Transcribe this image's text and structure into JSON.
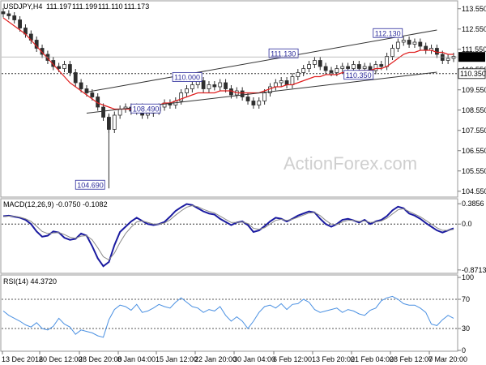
{
  "chart_data": [
    {
      "type": "candlestick",
      "symbol": "USDJPY,H4",
      "ohlc_header": [
        "111.197",
        "111.199",
        "111.110",
        "111.173"
      ],
      "ylim": [
        104.3,
        113.9
      ],
      "y_ticks": [
        "113.550",
        "112.550",
        "111.550",
        "110.550",
        "109.550",
        "108.550",
        "107.550",
        "106.550",
        "105.550",
        "104.550"
      ],
      "last_price": "111.173",
      "level_line": "110.350",
      "moving_average": "red",
      "annotations": [
        "104.690",
        "108.490",
        "110.000",
        "111.130",
        "110.350",
        "112.130"
      ],
      "watermark": "ActionForex.com",
      "x_ticks": [
        "13 Dec 2018",
        "20 Dec 12:00",
        "28 Dec 20:00",
        "8 Jan 04:00",
        "15 Jan 12:00",
        "22 Jan 20:00",
        "30 Jan 04:00",
        "6 Feb 12:00",
        "13 Feb 20:00",
        "21 Feb 04:00",
        "28 Feb 12:00",
        "7 Mar 20:00"
      ],
      "closes": [
        113.3,
        113.2,
        113.0,
        112.6,
        112.3,
        112.0,
        111.6,
        111.3,
        111.0,
        110.7,
        110.6,
        110.8,
        110.4,
        109.9,
        109.6,
        109.4,
        109.2,
        108.7,
        108.2,
        107.6,
        108.3,
        108.6,
        108.7,
        108.5,
        108.7,
        108.3,
        108.4,
        108.5,
        108.7,
        108.9,
        108.8,
        109.0,
        109.4,
        109.6,
        109.8,
        110.0,
        109.6,
        109.8,
        109.7,
        109.9,
        109.6,
        109.3,
        109.5,
        109.2,
        109.0,
        108.8,
        109.0,
        109.4,
        109.7,
        109.9,
        110.0,
        109.8,
        110.2,
        110.4,
        110.6,
        110.8,
        111.0,
        110.7,
        110.5,
        110.4,
        110.6,
        110.7,
        110.6,
        110.8,
        110.6,
        110.7,
        110.5,
        110.8,
        110.7,
        111.2,
        111.6,
        111.9,
        112.0,
        111.8,
        111.9,
        111.7,
        111.5,
        111.6,
        111.3,
        111.0,
        111.1,
        111.2
      ],
      "ma_closes": [
        113.1,
        112.9,
        112.7,
        112.5,
        112.3,
        112.0,
        111.7,
        111.4,
        111.1,
        110.8,
        110.5,
        110.2,
        109.9,
        109.7,
        109.5,
        109.3,
        109.1,
        108.9,
        108.8,
        108.7,
        108.6,
        108.6,
        108.6,
        108.6,
        108.6,
        108.6,
        108.7,
        108.7,
        108.8,
        108.9,
        108.9,
        109.0,
        109.1,
        109.2,
        109.3,
        109.4,
        109.4,
        109.4,
        109.4,
        109.5,
        109.5,
        109.5,
        109.4,
        109.4,
        109.4,
        109.4,
        109.4,
        109.5,
        109.6,
        109.7,
        109.7,
        109.8,
        109.8,
        109.9,
        110.0,
        110.1,
        110.2,
        110.2,
        110.3,
        110.3,
        110.3,
        110.4,
        110.4,
        110.4,
        110.5,
        110.5,
        110.5,
        110.6,
        110.6,
        110.7,
        110.9,
        111.1,
        111.3,
        111.4,
        111.4,
        111.5,
        111.5,
        111.5,
        111.4,
        111.4,
        111.3,
        111.3
      ],
      "channel": [
        [
          15,
          108.4
        ],
        [
          78,
          112.5
        ],
        [
          15,
          109.6
        ],
        [
          78,
          110.5
        ]
      ]
    },
    {
      "type": "line",
      "title": "MACD(12,26,9) -0.0750 -0.1082",
      "ylim": [
        -0.92,
        0.45
      ],
      "y_ticks": [
        "0.3856",
        "0.0",
        "-0.8713"
      ],
      "series": [
        {
          "color": "#1a1aa0",
          "values": [
            0.15,
            0.16,
            0.14,
            0.12,
            0.08,
            0.0,
            -0.14,
            -0.24,
            -0.22,
            -0.14,
            -0.16,
            -0.26,
            -0.3,
            -0.28,
            -0.18,
            -0.22,
            -0.42,
            -0.65,
            -0.8,
            -0.72,
            -0.4,
            -0.15,
            -0.05,
            0.05,
            0.12,
            0.06,
            0.0,
            -0.02,
            0.0,
            0.04,
            0.14,
            0.25,
            0.32,
            0.38,
            0.36,
            0.3,
            0.24,
            0.2,
            0.18,
            0.1,
            0.04,
            -0.02,
            0.03,
            0.05,
            -0.02,
            -0.15,
            -0.12,
            -0.04,
            0.05,
            0.12,
            0.1,
            0.05,
            0.1,
            0.16,
            0.2,
            0.24,
            0.22,
            0.1,
            0.0,
            -0.05,
            0.0,
            0.08,
            0.1,
            0.07,
            0.03,
            0.08,
            0.0,
            0.05,
            0.08,
            0.15,
            0.26,
            0.33,
            0.3,
            0.2,
            0.16,
            0.1,
            0.02,
            -0.05,
            -0.12,
            -0.16,
            -0.12,
            -0.08
          ]
        },
        {
          "color": "#888888",
          "values": [
            0.14,
            0.15,
            0.15,
            0.13,
            0.1,
            0.05,
            -0.04,
            -0.14,
            -0.18,
            -0.17,
            -0.16,
            -0.2,
            -0.25,
            -0.27,
            -0.23,
            -0.22,
            -0.3,
            -0.45,
            -0.62,
            -0.68,
            -0.55,
            -0.35,
            -0.18,
            -0.06,
            0.04,
            0.06,
            0.03,
            0.0,
            0.0,
            0.02,
            0.08,
            0.17,
            0.25,
            0.32,
            0.35,
            0.33,
            0.28,
            0.24,
            0.21,
            0.15,
            0.09,
            0.03,
            0.03,
            0.04,
            0.01,
            -0.08,
            -0.1,
            -0.07,
            0.0,
            0.07,
            0.09,
            0.07,
            0.09,
            0.13,
            0.17,
            0.21,
            0.22,
            0.16,
            0.07,
            0.0,
            -0.01,
            0.04,
            0.07,
            0.07,
            0.05,
            0.06,
            0.03,
            0.04,
            0.06,
            0.11,
            0.19,
            0.27,
            0.29,
            0.24,
            0.19,
            0.14,
            0.07,
            0.0,
            -0.07,
            -0.12,
            -0.12,
            -0.1
          ]
        }
      ]
    },
    {
      "type": "line",
      "title": "RSI(14) 44.3720",
      "ylim": [
        0,
        100
      ],
      "y_ticks": [
        "100",
        "70",
        "30",
        "0"
      ],
      "levels": [
        70,
        30
      ],
      "series": [
        {
          "color": "#4a90e2",
          "values": [
            54,
            48,
            44,
            40,
            35,
            32,
            38,
            30,
            28,
            33,
            44,
            36,
            32,
            22,
            28,
            26,
            24,
            20,
            18,
            42,
            56,
            62,
            60,
            55,
            63,
            52,
            54,
            58,
            63,
            60,
            58,
            66,
            72,
            66,
            60,
            58,
            52,
            56,
            54,
            60,
            48,
            40,
            46,
            40,
            30,
            40,
            52,
            60,
            62,
            58,
            64,
            56,
            63,
            64,
            70,
            66,
            56,
            52,
            54,
            56,
            58,
            52,
            56,
            54,
            50,
            48,
            55,
            58,
            68,
            72,
            74,
            70,
            64,
            62,
            62,
            58,
            52,
            36,
            34,
            42,
            48,
            44
          ]
        }
      ]
    }
  ]
}
